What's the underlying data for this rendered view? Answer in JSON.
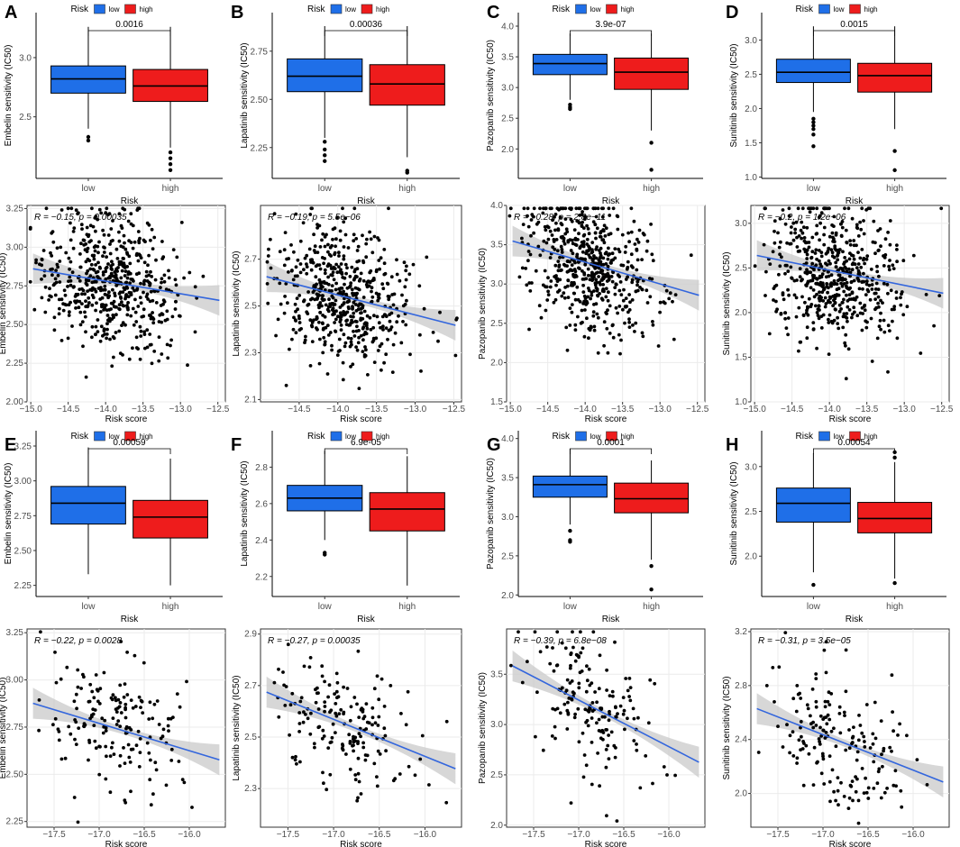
{
  "colors": {
    "low": "#1f6fe8",
    "high": "#ee1c1c",
    "fit": "#3366dd",
    "band": "#c9c9c9",
    "grid": "#ebebeb"
  },
  "legend": {
    "title": "Risk",
    "low": "low",
    "high": "high"
  },
  "chart_data": [
    {
      "label": "A",
      "type": "box",
      "drug": "Embelin",
      "ylabel": "Embelin sensitivity (IC50)",
      "xlabel": "Risk",
      "categories": [
        "low",
        "high"
      ],
      "ylim": [
        1.98,
        3.38
      ],
      "yticks": [
        2.5,
        3.0
      ],
      "p": "0.0016",
      "box": {
        "low": {
          "min": 2.4,
          "q1": 2.7,
          "median": 2.82,
          "q3": 2.93,
          "max": 3.26,
          "outliers": [
            2.33,
            2.3
          ]
        },
        "high": {
          "min": 2.24,
          "q1": 2.63,
          "median": 2.76,
          "q3": 2.9,
          "max": 3.26,
          "outliers": [
            2.2,
            2.15,
            2.1,
            2.05
          ]
        }
      }
    },
    {
      "label": "B",
      "type": "box",
      "drug": "Lapatinib",
      "ylabel": "Lapatinib sensitivity (IC50)",
      "xlabel": "Risk",
      "categories": [
        "low",
        "high"
      ],
      "ylim": [
        2.09,
        2.95
      ],
      "yticks": [
        2.25,
        2.5,
        2.75
      ],
      "p": "0.00036",
      "box": {
        "low": {
          "min": 2.3,
          "q1": 2.54,
          "median": 2.62,
          "q3": 2.71,
          "max": 2.88,
          "outliers": [
            2.28,
            2.24,
            2.21,
            2.18
          ]
        },
        "high": {
          "min": 2.2,
          "q1": 2.47,
          "median": 2.58,
          "q3": 2.68,
          "max": 2.88,
          "outliers": [
            2.13,
            2.12
          ]
        }
      }
    },
    {
      "label": "C",
      "type": "box",
      "drug": "Pazopanib",
      "ylabel": "Pazopanib sensitivity (IC50)",
      "xlabel": "Risk",
      "categories": [
        "low",
        "high"
      ],
      "ylim": [
        1.52,
        4.22
      ],
      "yticks": [
        2.0,
        2.5,
        3.0,
        3.5,
        4.0
      ],
      "p": "3.9e-07",
      "box": {
        "low": {
          "min": 2.8,
          "q1": 3.21,
          "median": 3.39,
          "q3": 3.54,
          "max": 3.88,
          "outliers": [
            2.72,
            2.68,
            2.65
          ]
        },
        "high": {
          "min": 2.3,
          "q1": 2.97,
          "median": 3.25,
          "q3": 3.48,
          "max": 3.88,
          "outliers": [
            2.1,
            1.66
          ]
        }
      }
    },
    {
      "label": "D",
      "type": "box",
      "drug": "Sunitinib",
      "ylabel": "Sunitinib sensitivity (IC50)",
      "xlabel": "Risk",
      "categories": [
        "low",
        "high"
      ],
      "ylim": [
        0.98,
        3.4
      ],
      "yticks": [
        1.0,
        1.5,
        2.0,
        2.5,
        3.0
      ],
      "p": "0.0015",
      "box": {
        "low": {
          "min": 1.95,
          "q1": 2.38,
          "median": 2.53,
          "q3": 2.72,
          "max": 3.2,
          "outliers": [
            1.85,
            1.8,
            1.75,
            1.7,
            1.62,
            1.45
          ]
        },
        "high": {
          "min": 1.7,
          "q1": 2.24,
          "median": 2.48,
          "q3": 2.66,
          "max": 3.2,
          "outliers": [
            1.38,
            1.1
          ]
        }
      }
    },
    {
      "label": "",
      "type": "scatter",
      "ylabel": "Embelin sensitivity (IC50)",
      "xlabel": "Risk score",
      "xlim": [
        -15.05,
        -12.4
      ],
      "ylim": [
        2.0,
        3.27
      ],
      "xticks": [
        -15.0,
        -14.5,
        -14.0,
        -13.5,
        -13.0,
        -12.5
      ],
      "yticks": [
        2.0,
        2.25,
        2.5,
        2.75,
        3.0,
        3.25
      ],
      "stat": "R = −0.15, p = 0.00035",
      "n": 560,
      "fit": {
        "slope": -0.082,
        "intercept": 1.633
      }
    },
    {
      "label": "",
      "type": "scatter",
      "ylabel": "Lapatinib sensitivity (IC50)",
      "xlabel": "Risk score",
      "xlim": [
        -15.0,
        -12.4
      ],
      "ylim": [
        2.09,
        2.93
      ],
      "xticks": [
        -14.5,
        -14.0,
        -13.5,
        -13.0,
        -12.5
      ],
      "yticks": [
        2.1,
        2.3,
        2.5,
        2.7
      ],
      "stat": "R = −0.19, p = 5.5e−06",
      "n": 560,
      "fit": {
        "slope": -0.085,
        "intercept": 1.357
      }
    },
    {
      "label": "",
      "type": "scatter",
      "ylabel": "Pazopanib sensitivity (IC50)",
      "xlabel": "Risk score",
      "xlim": [
        -15.05,
        -12.4
      ],
      "ylim": [
        1.5,
        4.0
      ],
      "xticks": [
        -15.0,
        -14.5,
        -14.0,
        -13.5,
        -13.0,
        -12.5
      ],
      "yticks": [
        1.5,
        2.0,
        2.5,
        3.0,
        3.5,
        4.0
      ],
      "stat": "R = −0.28, p = 2.8e−11",
      "n": 560,
      "fit": {
        "slope": -0.277,
        "intercept": -0.6
      }
    },
    {
      "label": "",
      "type": "scatter",
      "ylabel": "Sunitinib sensitivity (IC50)",
      "xlabel": "Risk score",
      "xlim": [
        -15.05,
        -12.4
      ],
      "ylim": [
        1.0,
        3.2
      ],
      "xticks": [
        -15.0,
        -14.5,
        -14.0,
        -13.5,
        -13.0,
        -12.5
      ],
      "yticks": [
        1.0,
        1.5,
        2.0,
        2.5,
        3.0
      ],
      "stat": "R = −0.2, p = 1.2e−06",
      "n": 560,
      "fit": {
        "slope": -0.17,
        "intercept": 0.095
      }
    },
    {
      "label": "E",
      "type": "box",
      "drug": "Embelin",
      "ylabel": "Embelin sensitivity (IC50)",
      "xlabel": "Risk",
      "categories": [
        "low",
        "high"
      ],
      "ylim": [
        2.17,
        3.36
      ],
      "yticks": [
        2.25,
        2.5,
        2.75,
        3.0,
        3.25
      ],
      "p": "0.00059",
      "box": {
        "low": {
          "min": 2.33,
          "q1": 2.69,
          "median": 2.84,
          "q3": 2.96,
          "max": 3.24,
          "outliers": []
        },
        "high": {
          "min": 2.25,
          "q1": 2.59,
          "median": 2.74,
          "q3": 2.86,
          "max": 3.16,
          "outliers": []
        }
      }
    },
    {
      "label": "F",
      "type": "box",
      "drug": "Lapatinib",
      "ylabel": "Lapatinib sensitivity (IC50)",
      "xlabel": "Risk",
      "categories": [
        "low",
        "high"
      ],
      "ylim": [
        2.09,
        3.0
      ],
      "yticks": [
        2.2,
        2.4,
        2.6,
        2.8
      ],
      "p": "6.9e-05",
      "box": {
        "low": {
          "min": 2.4,
          "q1": 2.56,
          "median": 2.63,
          "q3": 2.7,
          "max": 2.89,
          "outliers": [
            2.33,
            2.32
          ]
        },
        "high": {
          "min": 2.15,
          "q1": 2.45,
          "median": 2.57,
          "q3": 2.66,
          "max": 2.86,
          "outliers": []
        }
      }
    },
    {
      "label": "G",
      "type": "box",
      "drug": "Pazopanib",
      "ylabel": "Pazopanib sensitivity (IC50)",
      "xlabel": "Risk",
      "categories": [
        "low",
        "high"
      ],
      "ylim": [
        1.98,
        4.1
      ],
      "yticks": [
        2.0,
        2.5,
        3.0,
        3.5,
        4.0
      ],
      "p": "0.0001",
      "box": {
        "low": {
          "min": 2.9,
          "q1": 3.25,
          "median": 3.41,
          "q3": 3.52,
          "max": 3.87,
          "outliers": [
            2.82,
            2.7,
            2.68
          ]
        },
        "high": {
          "min": 2.45,
          "q1": 3.05,
          "median": 3.23,
          "q3": 3.43,
          "max": 3.72,
          "outliers": [
            2.37,
            2.07
          ]
        }
      }
    },
    {
      "label": "H",
      "type": "box",
      "drug": "Sunitinib",
      "ylabel": "Sunitinib sensitivity (IC50)",
      "xlabel": "Risk",
      "categories": [
        "low",
        "high"
      ],
      "ylim": [
        1.55,
        3.4
      ],
      "yticks": [
        2.0,
        2.5,
        3.0
      ],
      "p": "0.00054",
      "box": {
        "low": {
          "min": 1.82,
          "q1": 2.38,
          "median": 2.59,
          "q3": 2.76,
          "max": 3.15,
          "outliers": [
            1.68
          ]
        },
        "high": {
          "min": 1.75,
          "q1": 2.26,
          "median": 2.42,
          "q3": 2.6,
          "max": 3.05,
          "outliers": [
            3.16,
            3.1,
            1.7
          ]
        }
      }
    },
    {
      "label": "",
      "type": "scatter",
      "ylabel": "Embelin sensitivity (IC50)",
      "xlabel": "Risk score",
      "xlim": [
        -17.8,
        -15.6
      ],
      "ylim": [
        2.22,
        3.27
      ],
      "xticks": [
        -17.5,
        -17.0,
        -16.5,
        -16.0
      ],
      "yticks": [
        2.25,
        2.5,
        2.75,
        3.0,
        3.25
      ],
      "stat": "R = −0.22, p = 0.0028",
      "n": 170,
      "fit": {
        "slope": -0.145,
        "intercept": 0.305
      }
    },
    {
      "label": "",
      "type": "scatter",
      "ylabel": "Lapatinib sensitivity (IC50)",
      "xlabel": "Risk score",
      "xlim": [
        -17.8,
        -15.6
      ],
      "ylim": [
        2.15,
        2.92
      ],
      "xticks": [
        -17.5,
        -17.0,
        -16.5,
        -16.0
      ],
      "yticks": [
        2.3,
        2.5,
        2.7,
        2.9
      ],
      "stat": "R = −0.27, p = 0.00035",
      "n": 170,
      "fit": {
        "slope": -0.144,
        "intercept": 0.121
      }
    },
    {
      "label": "",
      "type": "scatter",
      "ylabel": "Pazopanib sensitivity (IC50)",
      "xlabel": "Risk score",
      "xlim": [
        -17.8,
        -15.6
      ],
      "ylim": [
        1.98,
        3.95
      ],
      "xticks": [
        -17.5,
        -17.0,
        -16.5,
        -16.0
      ],
      "yticks": [
        2.0,
        2.5,
        3.0,
        3.5
      ],
      "stat": "R = −0.39, p = 6.8e−08",
      "n": 170,
      "fit": {
        "slope": -0.463,
        "intercept": -4.628
      }
    },
    {
      "label": "",
      "type": "scatter",
      "ylabel": "Sunitinib sensitivity (IC50)",
      "xlabel": "Risk score",
      "xlim": [
        -17.8,
        -15.6
      ],
      "ylim": [
        1.75,
        3.22
      ],
      "xticks": [
        -17.5,
        -17.0,
        -16.5,
        -16.0
      ],
      "yticks": [
        2.0,
        2.4,
        2.8,
        3.2
      ],
      "stat": "R = −0.31, p = 3.5e−05",
      "n": 170,
      "fit": {
        "slope": -0.263,
        "intercept": -2.035
      }
    }
  ]
}
